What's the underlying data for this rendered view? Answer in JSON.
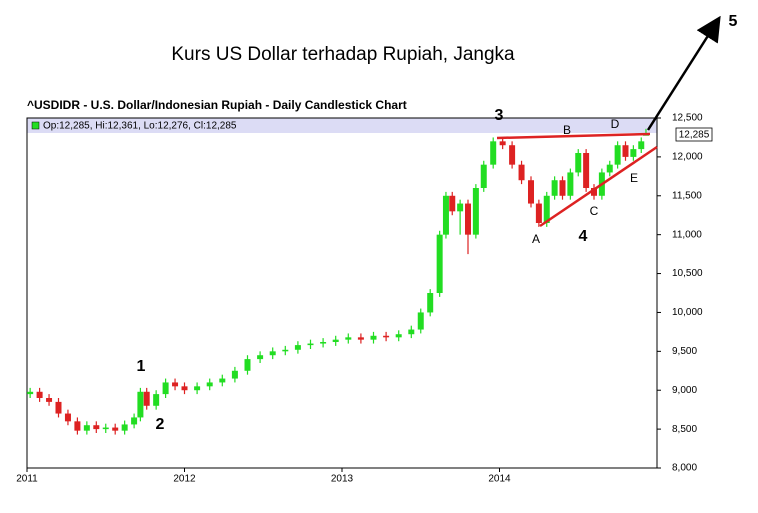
{
  "title": "Kurs US Dollar terhadap Rupiah, Jangka",
  "chart_data": {
    "type": "candlestick",
    "title": "^USDIDR - U.S. Dollar/Indonesian Rupiah - Daily Candlestick Chart",
    "legend": "Op:12,285, Hi:12,361, Lo:12,276, Cl:12,285",
    "last_value_label": "12,285",
    "up_color": "#22dd22",
    "down_color": "#dd2222",
    "annotations": [
      "1",
      "2",
      "3",
      "4",
      "5",
      "A",
      "B",
      "C",
      "D",
      "E"
    ],
    "xlim": [
      2011,
      2015
    ],
    "xticks": [
      2011,
      2012,
      2013,
      2014
    ],
    "ylim": [
      8000,
      12500
    ],
    "yticks": [
      {
        "value": 8000,
        "label": "8,000"
      },
      {
        "value": 8500,
        "label": "8,500"
      },
      {
        "value": 9000,
        "label": "9,000"
      },
      {
        "value": 9500,
        "label": "9,500"
      },
      {
        "value": 10000,
        "label": "10,000"
      },
      {
        "value": 10500,
        "label": "10,500"
      },
      {
        "value": 11000,
        "label": "11,000"
      },
      {
        "value": 11500,
        "label": "11,500"
      },
      {
        "value": 12000,
        "label": "12,000"
      },
      {
        "value": 12500,
        "label": "12,500"
      }
    ],
    "x": [
      2011.02,
      2011.08,
      2011.14,
      2011.2,
      2011.26,
      2011.32,
      2011.38,
      2011.44,
      2011.5,
      2011.56,
      2011.62,
      2011.68,
      2011.72,
      2011.76,
      2011.82,
      2011.88,
      2011.94,
      2012.0,
      2012.08,
      2012.16,
      2012.24,
      2012.32,
      2012.4,
      2012.48,
      2012.56,
      2012.64,
      2012.72,
      2012.8,
      2012.88,
      2012.96,
      2013.04,
      2013.12,
      2013.2,
      2013.28,
      2013.36,
      2013.44,
      2013.5,
      2013.56,
      2013.62,
      2013.66,
      2013.7,
      2013.75,
      2013.8,
      2013.85,
      2013.9,
      2013.96,
      2014.02,
      2014.08,
      2014.14,
      2014.2,
      2014.25,
      2014.3,
      2014.35,
      2014.4,
      2014.45,
      2014.5,
      2014.55,
      2014.6,
      2014.65,
      2014.7,
      2014.75,
      2014.8,
      2014.85,
      2014.9,
      2014.93
    ],
    "open": [
      8950,
      8980,
      8900,
      8850,
      8700,
      8600,
      8480,
      8550,
      8500,
      8520,
      8480,
      8560,
      8650,
      8980,
      8800,
      8950,
      9100,
      9050,
      9000,
      9050,
      9100,
      9150,
      9250,
      9400,
      9450,
      9500,
      9520,
      9580,
      9600,
      9620,
      9650,
      9680,
      9650,
      9700,
      9680,
      9720,
      9780,
      10000,
      10250,
      11000,
      11500,
      11300,
      11400,
      11000,
      11600,
      11900,
      12200,
      12150,
      11900,
      11700,
      11400,
      11150,
      11500,
      11700,
      11500,
      11800,
      12050,
      11600,
      11500,
      11800,
      11900,
      12150,
      12000,
      12100,
      12285
    ],
    "high": [
      9030,
      9030,
      8950,
      8900,
      8750,
      8650,
      8600,
      8600,
      8570,
      8570,
      8610,
      8700,
      9030,
      9030,
      9000,
      9150,
      9150,
      9100,
      9100,
      9150,
      9200,
      9300,
      9450,
      9500,
      9550,
      9570,
      9630,
      9650,
      9670,
      9700,
      9730,
      9730,
      9750,
      9750,
      9770,
      9830,
      10050,
      10300,
      11050,
      11550,
      11550,
      11450,
      11450,
      11650,
      11950,
      12250,
      12250,
      12200,
      11950,
      11750,
      11450,
      11550,
      11750,
      11750,
      11850,
      12100,
      12100,
      11650,
      11850,
      11950,
      12200,
      12200,
      12150,
      12250,
      12361
    ],
    "low": [
      8900,
      8850,
      8800,
      8650,
      8550,
      8430,
      8430,
      8450,
      8450,
      8430,
      8430,
      8510,
      8600,
      8750,
      8750,
      8900,
      9000,
      8950,
      8950,
      9000,
      9050,
      9100,
      9200,
      9350,
      9400,
      9450,
      9470,
      9530,
      9550,
      9570,
      9600,
      9600,
      9600,
      9630,
      9630,
      9670,
      9730,
      9950,
      10200,
      10950,
      11250,
      11000,
      10750,
      10950,
      11550,
      11850,
      12100,
      11850,
      11650,
      11350,
      11100,
      11100,
      11450,
      11450,
      11450,
      11750,
      11550,
      11450,
      11450,
      11750,
      11850,
      11950,
      11950,
      12050,
      12276
    ],
    "close": [
      8980,
      8900,
      8850,
      8700,
      8600,
      8480,
      8550,
      8500,
      8520,
      8480,
      8560,
      8650,
      8980,
      8800,
      8950,
      9100,
      9050,
      9000,
      9050,
      9100,
      9150,
      9250,
      9400,
      9450,
      9500,
      9520,
      9580,
      9600,
      9620,
      9650,
      9680,
      9650,
      9700,
      9680,
      9720,
      9780,
      10000,
      10250,
      11000,
      11500,
      11300,
      11400,
      11000,
      11600,
      11900,
      12200,
      12150,
      11900,
      11700,
      11400,
      11150,
      11500,
      11700,
      11500,
      11800,
      12050,
      11600,
      11500,
      11800,
      11900,
      12150,
      12000,
      12100,
      12200,
      12285
    ]
  }
}
